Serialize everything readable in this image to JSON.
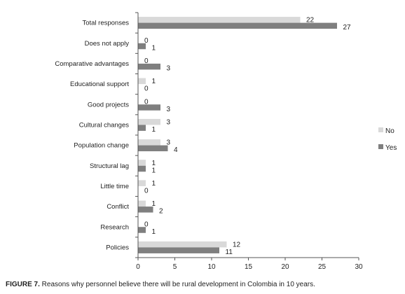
{
  "chart_data": {
    "type": "bar",
    "orientation": "horizontal",
    "categories": [
      "Total responses",
      "Does not apply",
      "Comparative advantages",
      "Educational support",
      "Good projects",
      "Cultural changes",
      "Population change",
      "Structural lag",
      "Little time",
      "Conflict",
      "Research",
      "Policies"
    ],
    "series": [
      {
        "name": "No",
        "color": "#d9d9d9",
        "values": [
          22,
          0,
          0,
          1,
          0,
          3,
          3,
          1,
          1,
          1,
          0,
          12
        ]
      },
      {
        "name": "Yes",
        "color": "#7f7f7f",
        "values": [
          27,
          1,
          3,
          0,
          3,
          1,
          4,
          1,
          0,
          2,
          1,
          11
        ]
      }
    ],
    "xlim": [
      0,
      30
    ],
    "xticks": [
      0,
      5,
      10,
      15,
      20,
      25,
      30
    ],
    "grid": false,
    "legend_position": "right",
    "data_labels": true
  },
  "caption": {
    "label": "FIGURE 7.",
    "text": " Reasons why personnel believe there will be rural development in Colombia in 10 years."
  }
}
